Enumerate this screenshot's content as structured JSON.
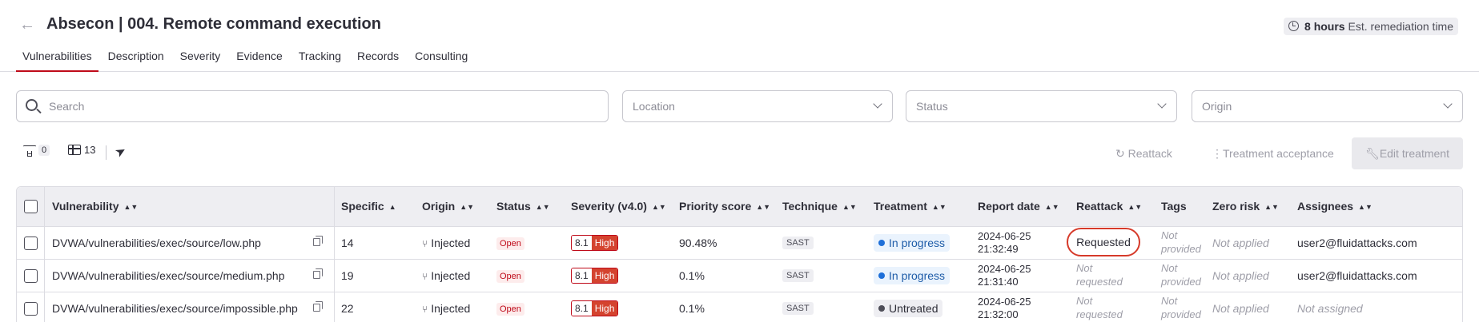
{
  "header": {
    "back_label": "←",
    "title": "Absecon | 004. Remote command execution",
    "est_hours": "8 hours",
    "est_label": "Est. remediation time"
  },
  "tabs": [
    "Vulnerabilities",
    "Description",
    "Severity",
    "Evidence",
    "Tracking",
    "Records",
    "Consulting"
  ],
  "filters": {
    "search_placeholder": "Search",
    "location_placeholder": "Location",
    "status_placeholder": "Status",
    "origin_placeholder": "Origin"
  },
  "toolbar": {
    "filter_count": "0",
    "columns_count": "13",
    "reattack_label": "Reattack",
    "acceptance_label": "Treatment acceptance",
    "edit_label": "Edit treatment"
  },
  "table": {
    "headers": [
      "Vulnerability",
      "Specific",
      "Origin",
      "Status",
      "Severity (v4.0)",
      "Priority score",
      "Technique",
      "Treatment",
      "Report date",
      "Reattack",
      "Tags",
      "Zero risk",
      "Assignees"
    ],
    "rows": [
      {
        "vulnerability": "DVWA/vulnerabilities/exec/source/low.php",
        "specific": "14",
        "origin": "Injected",
        "status": "Open",
        "severity_score": "8.1",
        "severity_level": "High",
        "priority": "90.48%",
        "technique": "SAST",
        "treatment": "In progress",
        "date": "2024-06-25",
        "time": "21:32:49",
        "reattack": "Requested",
        "tags_1": "Not",
        "tags_2": "provided",
        "zero_risk": "Not applied",
        "assignee": "user2@fluidattacks.com"
      },
      {
        "vulnerability": "DVWA/vulnerabilities/exec/source/medium.php",
        "specific": "19",
        "origin": "Injected",
        "status": "Open",
        "severity_score": "8.1",
        "severity_level": "High",
        "priority": "0.1%",
        "technique": "SAST",
        "treatment": "In progress",
        "date": "2024-06-25",
        "time": "21:31:40",
        "reattack_1": "Not",
        "reattack_2": "requested",
        "tags_1": "Not",
        "tags_2": "provided",
        "zero_risk": "Not applied",
        "assignee": "user2@fluidattacks.com"
      },
      {
        "vulnerability": "DVWA/vulnerabilities/exec/source/impossible.php",
        "specific": "22",
        "origin": "Injected",
        "status": "Open",
        "severity_score": "8.1",
        "severity_level": "High",
        "priority": "0.1%",
        "technique": "SAST",
        "treatment": "Untreated",
        "date": "2024-06-25",
        "time": "21:32:00",
        "reattack_1": "Not",
        "reattack_2": "requested",
        "tags_1": "Not",
        "tags_2": "provided",
        "zero_risk": "Not applied",
        "assignee": "Not assigned"
      }
    ]
  }
}
